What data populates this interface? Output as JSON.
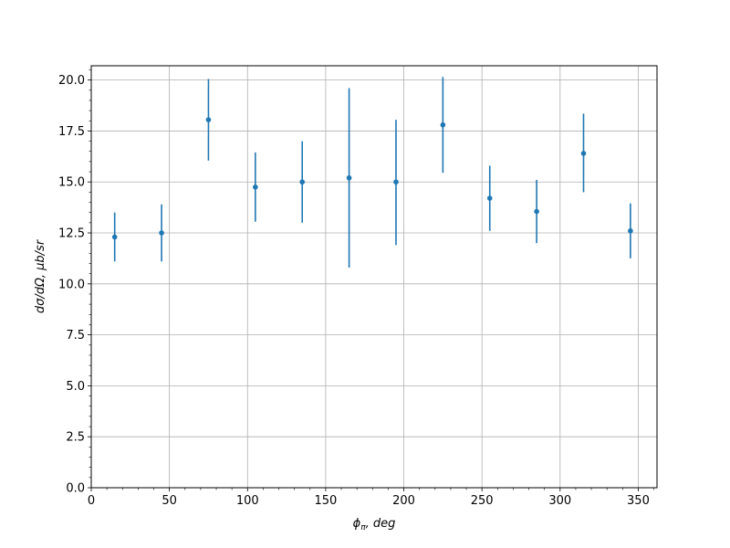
{
  "chart_data": {
    "type": "scatter",
    "xlabel": "ϕπ, deg",
    "xlabel_main": "ϕ",
    "xlabel_sub": "π",
    "xlabel_rest": ", deg",
    "ylabel": "dσ/dΩ, μb/sr",
    "xlim": [
      0,
      362
    ],
    "ylim": [
      0,
      20.7
    ],
    "grid": true,
    "x_ticks": [
      0,
      50,
      100,
      150,
      200,
      250,
      300,
      350
    ],
    "x_tick_labels": [
      "0",
      "50",
      "100",
      "150",
      "200",
      "250",
      "300",
      "350"
    ],
    "x_minor_step": 10,
    "y_ticks": [
      0,
      2.5,
      5,
      7.5,
      10,
      12.5,
      15,
      17.5,
      20
    ],
    "y_tick_labels": [
      "0.0",
      "2.5",
      "5.0",
      "7.5",
      "10.0",
      "12.5",
      "15.0",
      "17.5",
      "20.0"
    ],
    "y_minor_step": 0.5,
    "color": "#1f77b4",
    "series": [
      {
        "x": [
          15,
          45,
          75,
          105,
          135,
          165,
          195,
          225,
          255,
          285,
          315,
          345
        ],
        "y": [
          12.3,
          12.5,
          18.05,
          14.75,
          15.0,
          15.2,
          15.0,
          17.8,
          14.2,
          13.55,
          16.4,
          12.6
        ],
        "y_low": [
          11.1,
          11.1,
          16.05,
          13.05,
          13.0,
          10.8,
          11.9,
          15.45,
          12.6,
          12.0,
          14.5,
          11.25
        ],
        "y_high": [
          13.5,
          13.9,
          20.05,
          16.45,
          17.0,
          19.6,
          18.05,
          20.15,
          15.8,
          15.1,
          18.35,
          13.95
        ]
      }
    ]
  }
}
